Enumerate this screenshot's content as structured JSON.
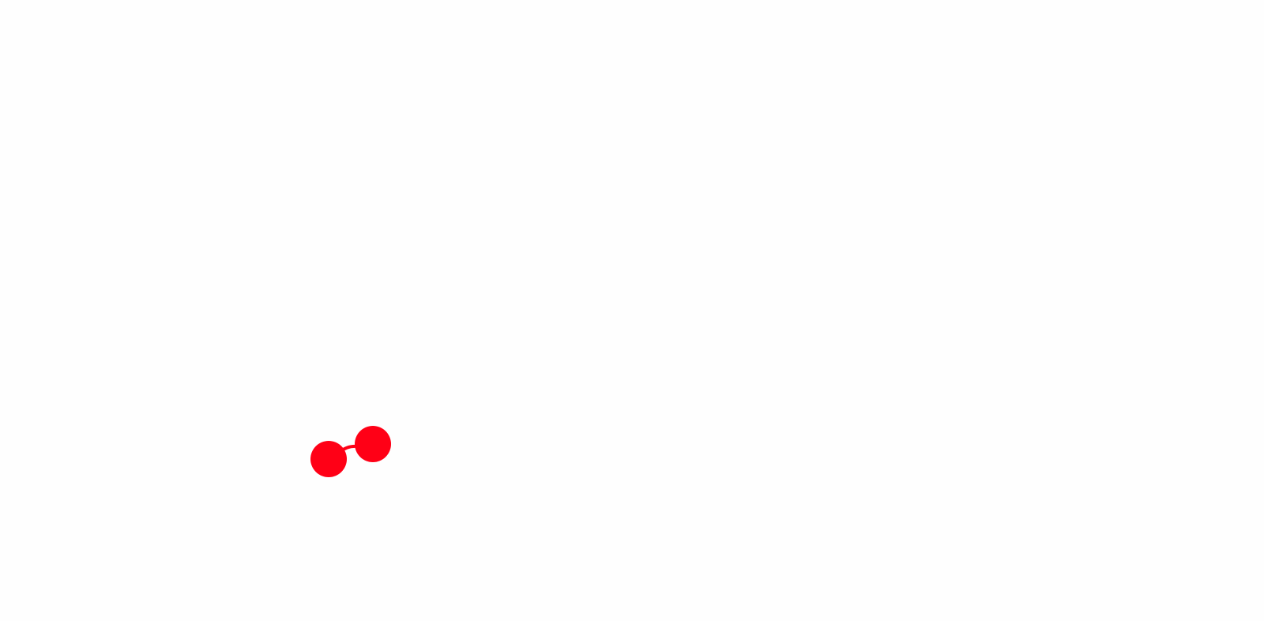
{
  "scene": {
    "background_color": "#fefefe",
    "shape_color": "#ff0016",
    "shapes": [
      "circle",
      "circle"
    ],
    "connector": "curved-line"
  }
}
